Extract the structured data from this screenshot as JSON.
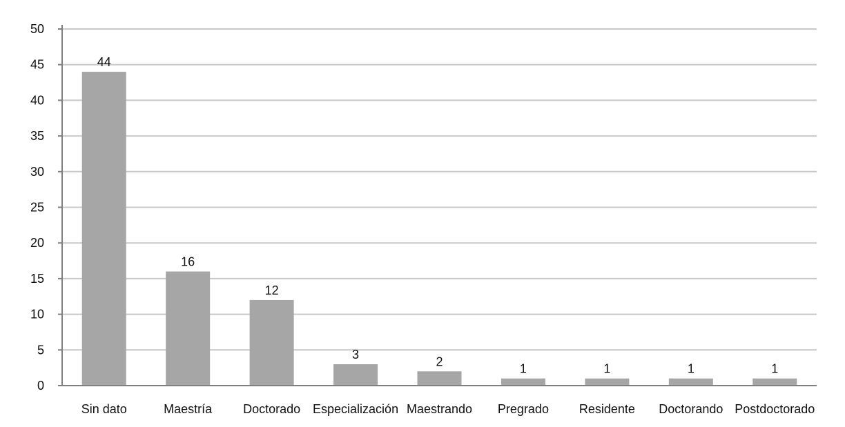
{
  "chart_data": {
    "type": "bar",
    "title": "",
    "xlabel": "",
    "ylabel": "",
    "categories": [
      "Sin dato",
      "Maestría",
      "Doctorado",
      "Especialización",
      "Maestrando",
      "Pregrado",
      "Residente",
      "Doctorando",
      "Postdoctorado"
    ],
    "values": [
      44,
      16,
      12,
      3,
      2,
      1,
      1,
      1,
      1
    ],
    "data_labels": [
      "44",
      "16",
      "12",
      "3",
      "2",
      "1",
      "1",
      "1",
      "1"
    ],
    "ylim": [
      0,
      50
    ],
    "yticks": [
      "0",
      "5",
      "10",
      "15",
      "20",
      "25",
      "30",
      "35",
      "40",
      "45",
      "50"
    ],
    "grid": true,
    "legend": "none",
    "colors": {
      "bar": "#a6a6a6",
      "grid": "#c8c8c8",
      "axis": "#808080"
    }
  }
}
